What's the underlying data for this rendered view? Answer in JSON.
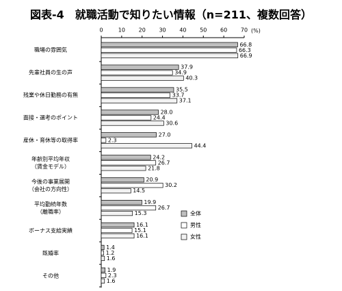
{
  "chart_data": {
    "type": "hbar",
    "title": "図表-4　就職活動で知りたい情報（n=211、複数回答）",
    "unit_label": "(%)",
    "categories": [
      "職場の雰囲気",
      "先輩社員の生の声",
      "残業や休日勤務の有無",
      "面接・選考のポイント",
      "産休・育休等の取得率",
      "年齢別平均年収\n（賃金モデル）",
      "今後の事業展開\n（会社の方向性）",
      "平均勤続年数\n（離職率）",
      "ボーナス支給実績",
      "既婚率",
      "その他"
    ],
    "series": [
      {
        "name": "全体",
        "color": "#bfbfbf",
        "values": [
          66.8,
          37.9,
          35.5,
          28.0,
          27.0,
          24.2,
          20.9,
          19.9,
          16.1,
          1.4,
          1.9
        ],
        "value_labels": [
          "66.8",
          "37.9",
          "35.5",
          "28.0",
          "27.0",
          "24.2",
          "20.9",
          "19.9",
          "16.1",
          "1.4",
          "1.9"
        ]
      },
      {
        "name": "男性",
        "color": "#ffffff",
        "values": [
          66.3,
          34.9,
          33.7,
          24.4,
          2.3,
          26.7,
          30.2,
          26.7,
          15.1,
          1.2,
          2.3
        ],
        "value_labels": [
          "66.3",
          "34.9",
          "33.7",
          "24.4",
          "2.3",
          "26.7",
          "30.2",
          "26.7",
          "15.1",
          "1.2",
          "2.3"
        ]
      },
      {
        "name": "女性",
        "color": "#f2f2f2",
        "values": [
          66.9,
          40.3,
          37.1,
          30.6,
          44.4,
          21.8,
          14.5,
          15.3,
          16.1,
          1.6,
          1.6
        ],
        "value_labels": [
          "66.9",
          "40.3",
          "37.1",
          "30.6",
          "44.4",
          "21.8",
          "14.5",
          "15.3",
          "16.1",
          "1.6",
          "1.6"
        ]
      }
    ],
    "xlim": [
      0,
      70
    ],
    "xticks": [
      0,
      10,
      20,
      30,
      40,
      50,
      60,
      70
    ],
    "legend": "right",
    "grid": false
  }
}
